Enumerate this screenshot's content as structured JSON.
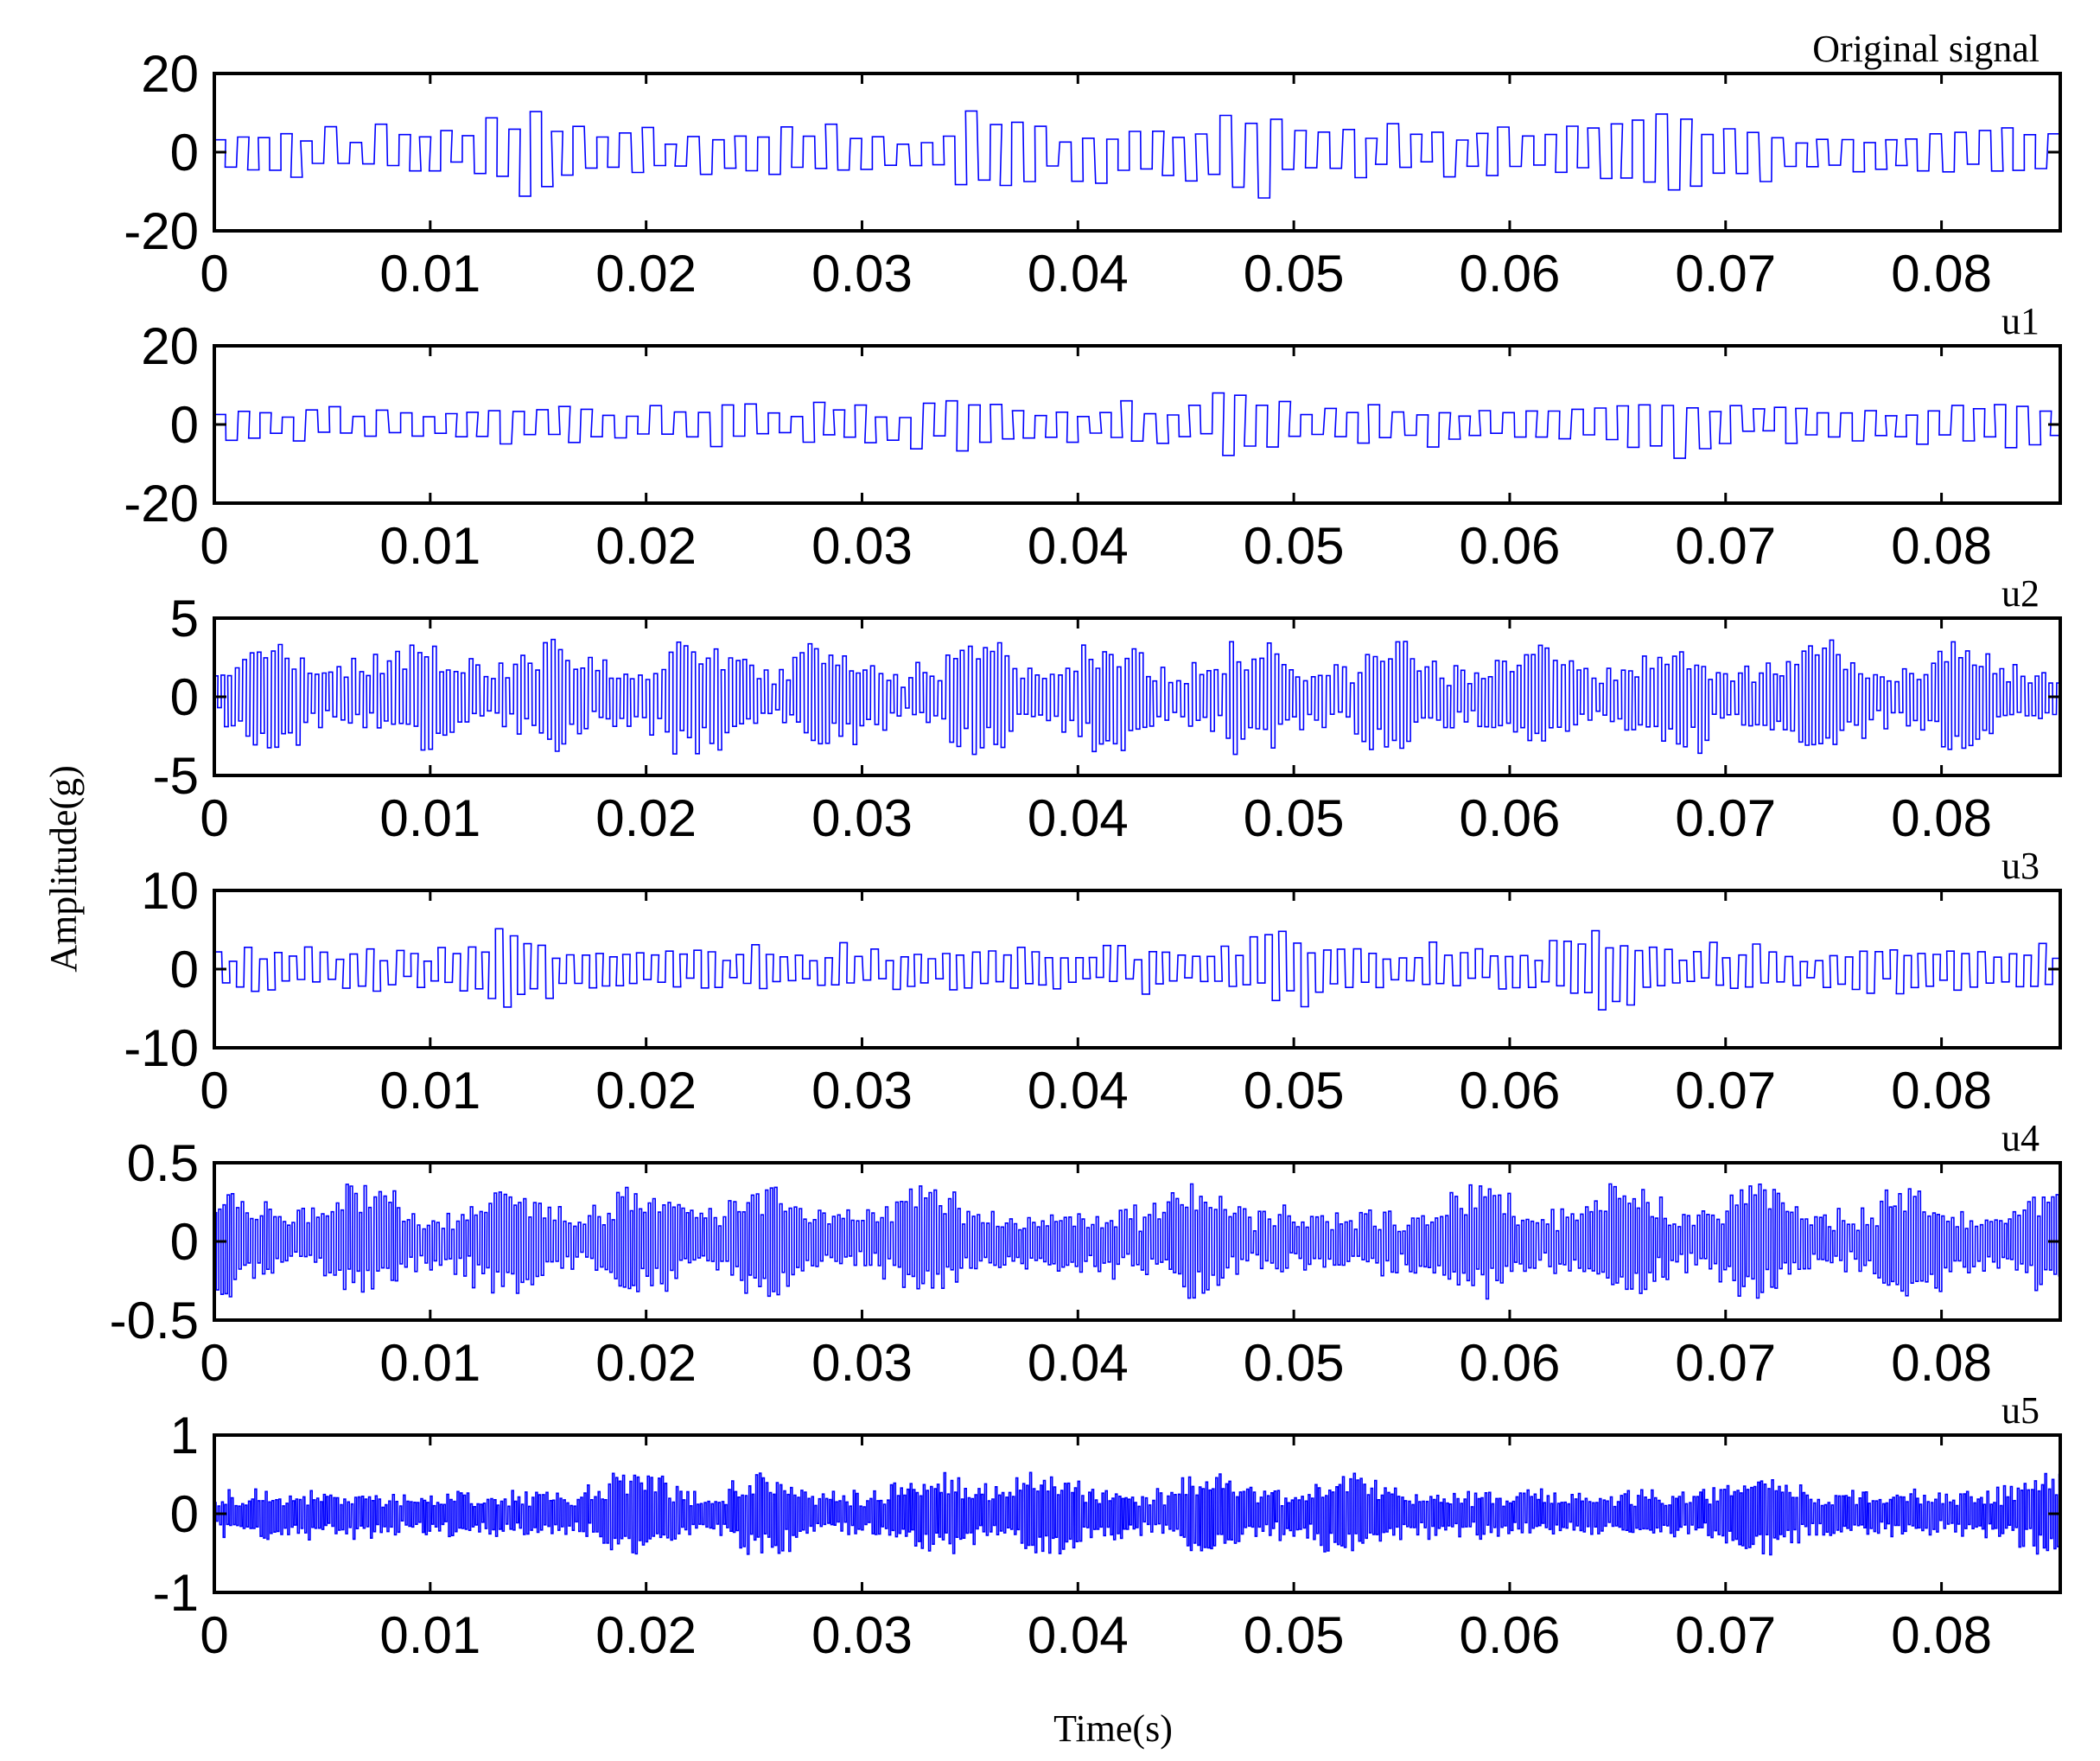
{
  "chart_data": [
    {
      "type": "line",
      "title": "Original signal",
      "xlim": [
        0,
        0.0855
      ],
      "ylim": [
        -20,
        20
      ],
      "xticks": [
        0,
        0.01,
        0.02,
        0.03,
        0.04,
        0.05,
        0.06,
        0.07,
        0.08
      ],
      "xtick_labels": [
        "0",
        "0.01",
        "0.02",
        "0.03",
        "0.04",
        "0.05",
        "0.06",
        "0.07",
        "0.08"
      ],
      "yticks": [
        -20,
        0,
        20
      ],
      "ytick_labels": [
        "-20",
        "0",
        "20"
      ],
      "series": [
        {
          "color": "#0000ff",
          "style": "step",
          "approx_amplitude": 12,
          "period_s": 0.00105,
          "burst_centers_s": [
            0.0135,
            0.0355,
            0.0475,
            0.0675
          ],
          "seed": 11
        }
      ]
    },
    {
      "type": "line",
      "title": "u1",
      "xlim": [
        0,
        0.0855
      ],
      "ylim": [
        -20,
        20
      ],
      "xticks": [
        0,
        0.01,
        0.02,
        0.03,
        0.04,
        0.05,
        0.06,
        0.07,
        0.08
      ],
      "xtick_labels": [
        "0",
        "0.01",
        "0.02",
        "0.03",
        "0.04",
        "0.05",
        "0.06",
        "0.07",
        "0.08"
      ],
      "yticks": [
        -20,
        0,
        20
      ],
      "ytick_labels": [
        "-20",
        "0",
        "20"
      ],
      "series": [
        {
          "color": "#0000ff",
          "style": "step",
          "approx_amplitude": 9,
          "period_s": 0.00105,
          "burst_centers_s": [
            0.0355,
            0.0475,
            0.0675
          ],
          "seed": 23
        }
      ]
    },
    {
      "type": "line",
      "title": "u2",
      "xlim": [
        0,
        0.0855
      ],
      "ylim": [
        -5,
        5
      ],
      "xticks": [
        0,
        0.01,
        0.02,
        0.03,
        0.04,
        0.05,
        0.06,
        0.07,
        0.08
      ],
      "xtick_labels": [
        "0",
        "0.01",
        "0.02",
        "0.03",
        "0.04",
        "0.05",
        "0.06",
        "0.07",
        "0.08"
      ],
      "yticks": [
        -5,
        0,
        5
      ],
      "ytick_labels": [
        "-5",
        "0",
        "5"
      ],
      "series": [
        {
          "color": "#0000ff",
          "style": "step",
          "approx_amplitude": 3.5,
          "period_s": 0.00034,
          "burst_centers_s": [
            0.0025,
            0.0092,
            0.0155,
            0.0222,
            0.0285,
            0.0352,
            0.0415,
            0.0482,
            0.0545,
            0.061,
            0.0675,
            0.0742,
            0.0805
          ],
          "seed": 37
        }
      ]
    },
    {
      "type": "line",
      "title": "u3",
      "xlim": [
        0,
        0.0855
      ],
      "ylim": [
        -10,
        10
      ],
      "xticks": [
        0,
        0.01,
        0.02,
        0.03,
        0.04,
        0.05,
        0.06,
        0.07,
        0.08
      ],
      "xtick_labels": [
        "0",
        "0.01",
        "0.02",
        "0.03",
        "0.04",
        "0.05",
        "0.06",
        "0.07",
        "0.08"
      ],
      "yticks": [
        -10,
        0,
        10
      ],
      "ytick_labels": [
        "-10",
        "0",
        "10"
      ],
      "series": [
        {
          "color": "#0000ff",
          "style": "step",
          "approx_amplitude": 5,
          "period_s": 0.00068,
          "burst_centers_s": [
            0.0135,
            0.0495,
            0.0642
          ],
          "seed": 41
        }
      ]
    },
    {
      "type": "line",
      "title": "u4",
      "xlim": [
        0,
        0.0855
      ],
      "ylim": [
        -0.5,
        0.5
      ],
      "xticks": [
        0,
        0.01,
        0.02,
        0.03,
        0.04,
        0.05,
        0.06,
        0.07,
        0.08
      ],
      "xtick_labels": [
        "0",
        "0.01",
        "0.02",
        "0.03",
        "0.04",
        "0.05",
        "0.06",
        "0.07",
        "0.08"
      ],
      "yticks": [
        -0.5,
        0,
        0.5
      ],
      "ytick_labels": [
        "-0.5",
        "0",
        "0.5"
      ],
      "series": [
        {
          "color": "#0000ff",
          "style": "step",
          "approx_amplitude": 0.35,
          "period_s": 0.00022,
          "burst_centers_s": [
            0.0003,
            0.007,
            0.0135,
            0.0198,
            0.0255,
            0.033,
            0.0455,
            0.0585,
            0.0652,
            0.0715,
            0.0785,
            0.0852
          ],
          "seed": 53
        }
      ]
    },
    {
      "type": "line",
      "title": "u5",
      "xlim": [
        0,
        0.0855
      ],
      "ylim": [
        -1,
        1
      ],
      "xticks": [
        0,
        0.01,
        0.02,
        0.03,
        0.04,
        0.05,
        0.06,
        0.07,
        0.08
      ],
      "xtick_labels": [
        "0",
        "0.01",
        "0.02",
        "0.03",
        "0.04",
        "0.05",
        "0.06",
        "0.07",
        "0.08"
      ],
      "yticks": [
        -1,
        0,
        1
      ],
      "ytick_labels": [
        "-1",
        "0",
        "1"
      ],
      "series": [
        {
          "color": "#0000ff",
          "style": "step",
          "approx_amplitude": 0.5,
          "period_s": 0.00016,
          "burst_centers_s": [
            0.0195,
            0.0255,
            0.0335,
            0.0385,
            0.0462,
            0.0525,
            0.0713,
            0.0852
          ],
          "seed": 67
        }
      ]
    }
  ],
  "axis_labels": {
    "ylabel": "Amplitude(g)",
    "xlabel": "Time(s)"
  }
}
